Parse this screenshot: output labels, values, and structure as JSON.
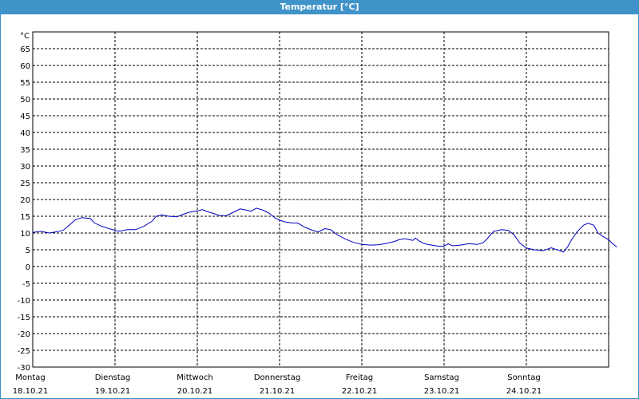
{
  "window": {
    "title": "Temperatur [°C]"
  },
  "chart_data": {
    "type": "line",
    "title": "Temperatur [°C]",
    "ylabel": "°C",
    "ylim": [
      -30,
      70
    ],
    "yticks": [
      65,
      60,
      55,
      50,
      45,
      40,
      35,
      30,
      25,
      20,
      15,
      10,
      5,
      0,
      -5,
      -10,
      -15,
      -20,
      -25,
      -30
    ],
    "grid": true,
    "x_range_days": [
      0,
      7
    ],
    "x_day_labels": [
      {
        "day": "Montag",
        "date": "18.10.21"
      },
      {
        "day": "Dienstag",
        "date": "19.10.21"
      },
      {
        "day": "Mittwoch",
        "date": "20.10.21"
      },
      {
        "day": "Donnerstag",
        "date": "21.10.21"
      },
      {
        "day": "Freitag",
        "date": "22.10.21"
      },
      {
        "day": "Samstag",
        "date": "23.10.21"
      },
      {
        "day": "Sonntag",
        "date": "24.10.21"
      }
    ],
    "series": [
      {
        "color": "#0000c0",
        "points": [
          [
            0.0,
            10.2
          ],
          [
            0.1,
            10.5
          ],
          [
            0.2,
            10.0
          ],
          [
            0.3,
            10.4
          ],
          [
            0.37,
            10.8
          ],
          [
            0.45,
            12.5
          ],
          [
            0.52,
            14.0
          ],
          [
            0.6,
            14.6
          ],
          [
            0.7,
            14.3
          ],
          [
            0.75,
            13.0
          ],
          [
            0.82,
            12.2
          ],
          [
            0.9,
            11.5
          ],
          [
            1.0,
            10.8
          ],
          [
            1.05,
            10.5
          ],
          [
            1.15,
            11.0
          ],
          [
            1.25,
            11.0
          ],
          [
            1.35,
            12.0
          ],
          [
            1.45,
            13.5
          ],
          [
            1.5,
            15.0
          ],
          [
            1.57,
            15.4
          ],
          [
            1.65,
            15.0
          ],
          [
            1.75,
            14.8
          ],
          [
            1.82,
            15.5
          ],
          [
            1.9,
            16.2
          ],
          [
            2.0,
            16.6
          ],
          [
            2.06,
            17.0
          ],
          [
            2.12,
            16.4
          ],
          [
            2.2,
            15.8
          ],
          [
            2.28,
            15.2
          ],
          [
            2.35,
            15.2
          ],
          [
            2.45,
            16.3
          ],
          [
            2.52,
            17.2
          ],
          [
            2.6,
            16.8
          ],
          [
            2.65,
            16.5
          ],
          [
            2.72,
            17.4
          ],
          [
            2.8,
            16.8
          ],
          [
            2.88,
            15.8
          ],
          [
            2.95,
            14.4
          ],
          [
            3.0,
            13.8
          ],
          [
            3.07,
            13.3
          ],
          [
            3.15,
            13.0
          ],
          [
            3.22,
            13.0
          ],
          [
            3.3,
            11.8
          ],
          [
            3.4,
            10.8
          ],
          [
            3.47,
            10.3
          ],
          [
            3.55,
            11.3
          ],
          [
            3.62,
            11.0
          ],
          [
            3.7,
            9.5
          ],
          [
            3.8,
            8.2
          ],
          [
            3.9,
            7.2
          ],
          [
            4.0,
            6.6
          ],
          [
            4.1,
            6.4
          ],
          [
            4.2,
            6.5
          ],
          [
            4.3,
            6.9
          ],
          [
            4.4,
            7.5
          ],
          [
            4.45,
            8.0
          ],
          [
            4.52,
            8.3
          ],
          [
            4.58,
            8.0
          ],
          [
            4.62,
            7.8
          ],
          [
            4.65,
            8.5
          ],
          [
            4.7,
            7.6
          ],
          [
            4.75,
            6.9
          ],
          [
            4.8,
            6.6
          ],
          [
            4.9,
            6.2
          ],
          [
            4.95,
            6.0
          ],
          [
            5.0,
            6.1
          ],
          [
            5.05,
            6.8
          ],
          [
            5.1,
            6.2
          ],
          [
            5.2,
            6.4
          ],
          [
            5.3,
            6.8
          ],
          [
            5.4,
            6.6
          ],
          [
            5.47,
            7.0
          ],
          [
            5.52,
            8.2
          ],
          [
            5.6,
            10.5
          ],
          [
            5.7,
            11.0
          ],
          [
            5.78,
            10.8
          ],
          [
            5.85,
            9.5
          ],
          [
            5.92,
            7.0
          ],
          [
            6.0,
            5.5
          ],
          [
            6.1,
            5.0
          ],
          [
            6.2,
            4.7
          ],
          [
            6.3,
            5.6
          ],
          [
            6.4,
            4.8
          ],
          [
            6.45,
            4.3
          ],
          [
            6.5,
            5.8
          ],
          [
            6.55,
            8.0
          ],
          [
            6.62,
            10.5
          ],
          [
            6.7,
            12.4
          ],
          [
            6.75,
            12.9
          ],
          [
            6.82,
            12.3
          ],
          [
            6.87,
            10.0
          ],
          [
            6.93,
            9.0
          ],
          [
            7.0,
            8.0
          ],
          [
            7.04,
            7.0
          ],
          [
            7.1,
            5.8
          ]
        ]
      }
    ]
  }
}
